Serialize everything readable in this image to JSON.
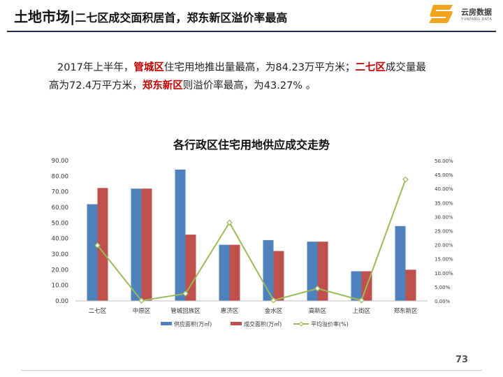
{
  "header": {
    "title_main": "土地市场|",
    "title_sub": "二七区成交面积居首，郑东新区溢价率最高"
  },
  "logo": {
    "text_cn": "云房数据",
    "text_en": "YUNFANG DATA"
  },
  "paragraph": {
    "p1": "2017年上半年，",
    "h1": "管城区",
    "p2": "住宅用地推出量最高，为84.23万平方米；",
    "h2": "二七区",
    "p3": "成交量最",
    "p4": "高为72.4万平方米，",
    "h3": "郑东新区",
    "p5": "则溢价率最高，为43.27% 。"
  },
  "colors": {
    "supply": "#4f81bd",
    "deal": "#c0504d",
    "premium": "#9bbb59",
    "highlight": "#c00000"
  },
  "chart_data": {
    "type": "bar",
    "title": "各行政区住宅用地供应成交走势",
    "categories": [
      "二七区",
      "中原区",
      "管城回族区",
      "惠济区",
      "金水区",
      "高新区",
      "上街区",
      "郑东新区"
    ],
    "series": [
      {
        "name": "供应面积(万㎡)",
        "type": "bar",
        "axis": "left",
        "values": [
          62.0,
          72.0,
          84.23,
          36.0,
          39.0,
          38.0,
          19.0,
          48.0
        ]
      },
      {
        "name": "成交面积(万㎡)",
        "type": "bar",
        "axis": "left",
        "values": [
          72.4,
          72.0,
          42.5,
          36.0,
          32.0,
          38.0,
          19.0,
          20.0
        ]
      },
      {
        "name": "平均溢价率(%)",
        "type": "line",
        "axis": "right",
        "values": [
          19.8,
          0.1,
          2.6,
          27.9,
          0.2,
          4.4,
          0.2,
          43.27
        ]
      }
    ],
    "ylim": [
      0,
      90
    ],
    "y2lim": [
      0,
      50
    ],
    "yticks": [
      "0.00",
      "10.00",
      "20.00",
      "30.00",
      "40.00",
      "50.00",
      "60.00",
      "70.00",
      "80.00",
      "90.00"
    ],
    "y2ticks": [
      "0.00%",
      "5.00%",
      "10.00%",
      "15.00%",
      "20.00%",
      "25.00%",
      "30.00%",
      "35.00%",
      "40.00%",
      "45.00%",
      "50.00%"
    ],
    "grid": false,
    "legend": "bottom"
  },
  "page_number": "73"
}
